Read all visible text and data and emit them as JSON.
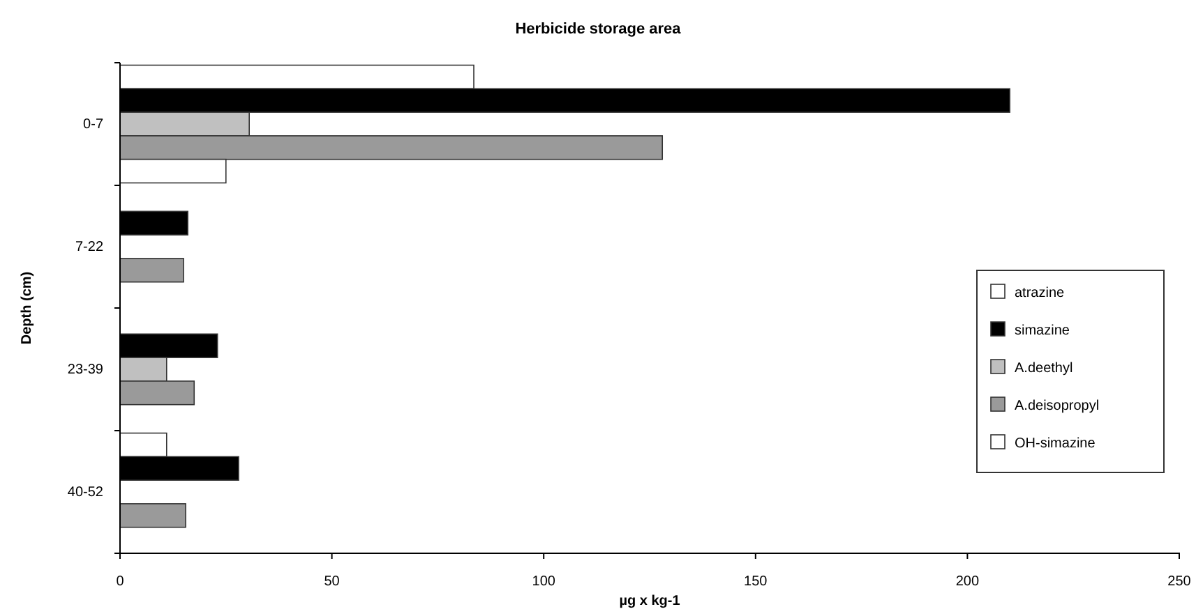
{
  "chart_data": {
    "type": "bar",
    "orientation": "horizontal",
    "title": "Herbicide storage area",
    "xlabel": "µg x kg-1",
    "ylabel": "Depth (cm)",
    "categories": [
      "0-7",
      "7-22",
      "23-39",
      "40-52"
    ],
    "series": [
      {
        "name": "atrazine",
        "color": "#ffffff",
        "values": [
          83.5,
          null,
          null,
          11
        ]
      },
      {
        "name": "simazine",
        "color": "#000000",
        "values": [
          210,
          16,
          23,
          28
        ]
      },
      {
        "name": "A.deethyl",
        "color": "#c0c0c0",
        "values": [
          30.5,
          null,
          11,
          null
        ]
      },
      {
        "name": "A.deisopropyl",
        "color": "#9a9a9a",
        "values": [
          128,
          15,
          17.5,
          15.5
        ]
      },
      {
        "name": "OH-simazine",
        "color": "#ffffff",
        "values": [
          25,
          null,
          null,
          null
        ]
      }
    ],
    "xlim": [
      0,
      250
    ],
    "xticks": [
      0,
      50,
      100,
      150,
      200,
      250
    ],
    "legend": "right"
  }
}
